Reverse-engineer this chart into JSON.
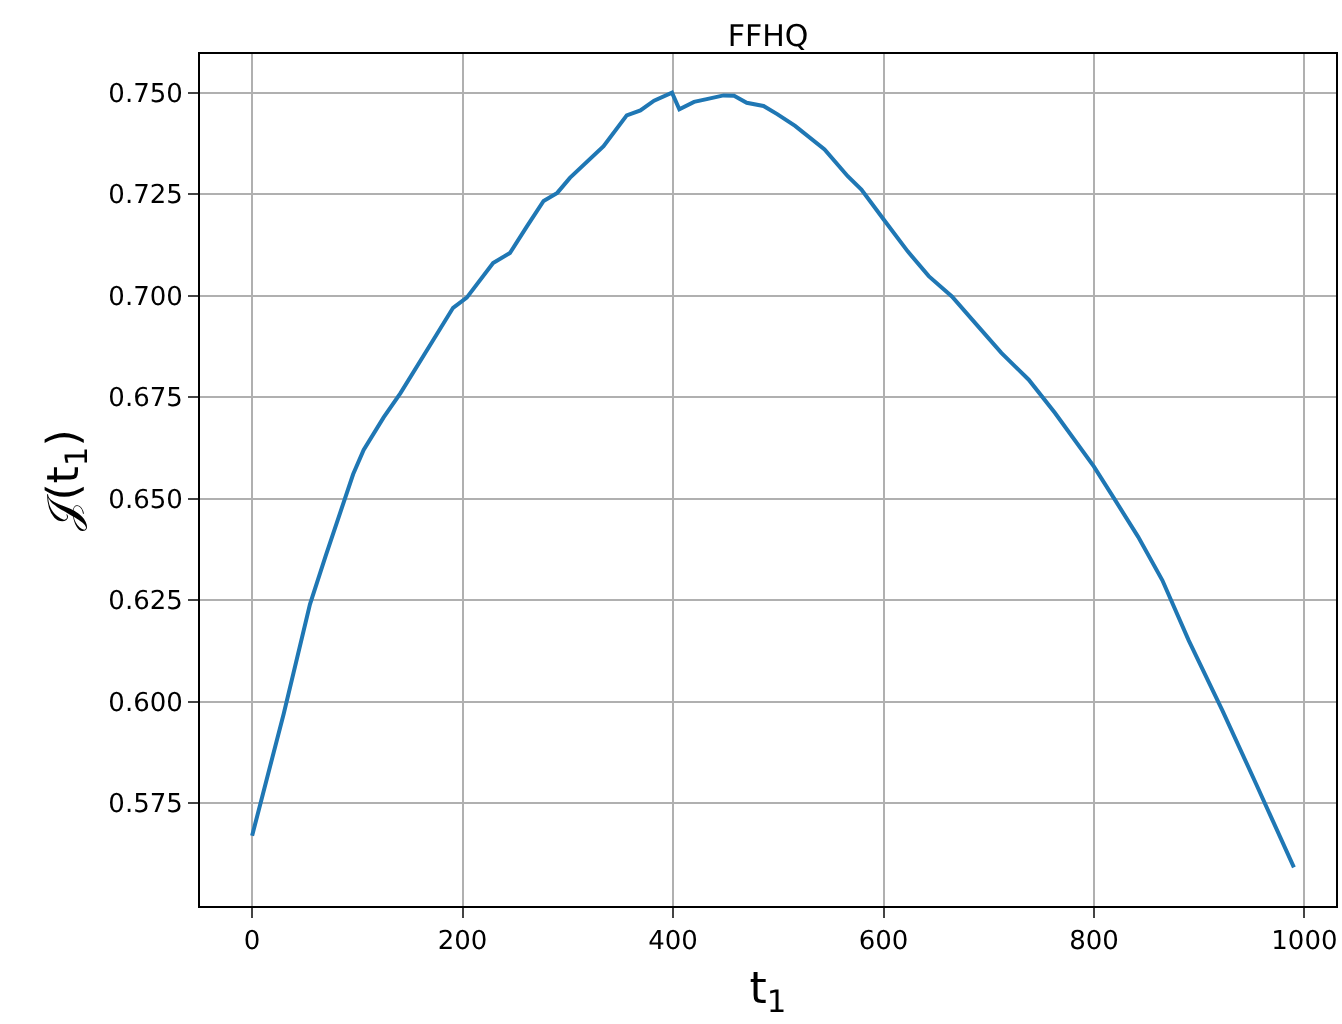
{
  "chart_data": {
    "type": "line",
    "title": "FFHQ",
    "xlabel": "t$_{1}$",
    "ylabel": "𝒥(t$_{1}$)",
    "x": [
      0,
      30,
      55,
      70,
      96,
      106,
      125,
      141,
      172,
      191,
      204,
      229,
      245,
      261,
      277,
      290,
      302,
      334,
      356,
      369,
      382,
      399,
      406,
      420,
      432,
      448,
      458,
      470,
      486,
      499,
      516,
      544,
      566,
      579,
      600,
      623,
      643,
      665,
      687,
      712,
      738,
      763,
      800,
      820,
      842,
      865,
      890,
      922,
      954,
      990
    ],
    "series": [
      {
        "color": "#1f77b4",
        "values": [
          0.567,
          0.597,
          0.624,
          0.636,
          0.656,
          0.662,
          0.67,
          0.676,
          0.689,
          0.697,
          0.6995,
          0.708,
          0.7105,
          0.717,
          0.7233,
          0.7253,
          0.729,
          0.7368,
          0.7444,
          0.7456,
          0.748,
          0.75,
          0.7459,
          0.7477,
          0.7484,
          0.7493,
          0.7492,
          0.7475,
          0.7467,
          0.7447,
          0.7418,
          0.736,
          0.7294,
          0.7261,
          0.7188,
          0.7109,
          0.7048,
          0.6998,
          0.6933,
          0.6859,
          0.6793,
          0.6711,
          0.6579,
          0.6497,
          0.6406,
          0.6299,
          0.6151,
          0.5979,
          0.5798,
          0.5592
        ]
      }
    ],
    "xlim": [
      -49.5,
      1030
    ],
    "ylim": [
      0.5497,
      0.7595
    ],
    "xticks": [
      0,
      200,
      400,
      600,
      800,
      1000
    ],
    "yticks": [
      {
        "value": 0.575,
        "label": "0.575"
      },
      {
        "value": 0.6,
        "label": "0.600"
      },
      {
        "value": 0.625,
        "label": "0.625"
      },
      {
        "value": 0.65,
        "label": "0.650"
      },
      {
        "value": 0.675,
        "label": "0.675"
      },
      {
        "value": 0.7,
        "label": "0.700"
      },
      {
        "value": 0.725,
        "label": "0.725"
      },
      {
        "value": 0.75,
        "label": "0.750"
      }
    ],
    "grid": true,
    "marker": "none",
    "line_style": "solid"
  }
}
